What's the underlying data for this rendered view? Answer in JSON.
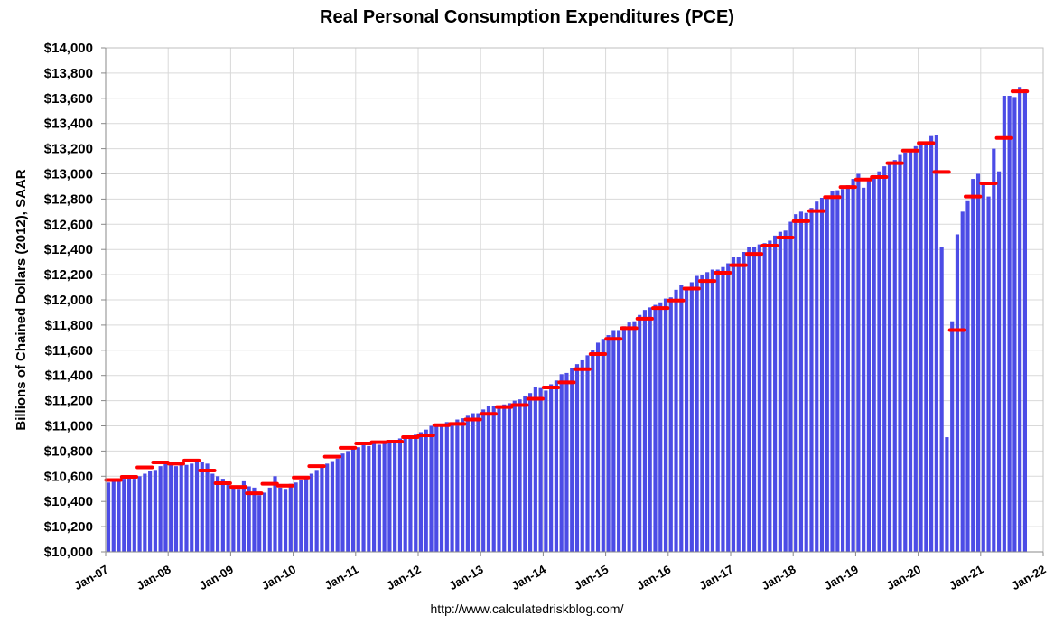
{
  "chart_data": {
    "type": "bar",
    "title": "Real Personal Consumption Expenditures (PCE)",
    "ylabel": "Billions of Chained Dollars (2012), SAAR",
    "xlabel": "",
    "ylim": [
      10000,
      14000
    ],
    "y_ticks": [
      "$10,000",
      "$10,200",
      "$10,400",
      "$10,600",
      "$10,800",
      "$11,000",
      "$11,200",
      "$11,400",
      "$11,600",
      "$11,800",
      "$12,000",
      "$12,200",
      "$12,400",
      "$12,600",
      "$12,800",
      "$13,000",
      "$13,200",
      "$13,400",
      "$13,600",
      "$13,800",
      "$14,000"
    ],
    "x_ticks": [
      "Jan-07",
      "Jan-08",
      "Jan-09",
      "Jan-10",
      "Jan-11",
      "Jan-12",
      "Jan-13",
      "Jan-14",
      "Jan-15",
      "Jan-16",
      "Jan-17",
      "Jan-18",
      "Jan-19",
      "Jan-20",
      "Jan-21",
      "Jan-22"
    ],
    "grid": true,
    "legend": "none",
    "series": [
      {
        "start_month": "Jan-07",
        "frequency": "monthly",
        "color": "#4c4ce6",
        "values": [
          10550,
          10560,
          10565,
          10580,
          10590,
          10580,
          10600,
          10620,
          10640,
          10650,
          10680,
          10700,
          10700,
          10680,
          10710,
          10690,
          10700,
          10720,
          10710,
          10700,
          10620,
          10600,
          10580,
          10540,
          10520,
          10500,
          10560,
          10520,
          10510,
          10450,
          10470,
          10510,
          10600,
          10510,
          10500,
          10540,
          10550,
          10570,
          10590,
          10620,
          10650,
          10670,
          10700,
          10720,
          10740,
          10780,
          10800,
          10820,
          10830,
          10850,
          10840,
          10860,
          10850,
          10880,
          10870,
          10880,
          10900,
          10920,
          10910,
          10930,
          10950,
          10970,
          11000,
          11010,
          11000,
          11030,
          11020,
          11050,
          11060,
          11080,
          11100,
          11100,
          11130,
          11160,
          11160,
          11150,
          11170,
          11180,
          11200,
          11210,
          11240,
          11260,
          11310,
          11300,
          11280,
          11330,
          11360,
          11410,
          11420,
          11460,
          11490,
          11520,
          11560,
          11600,
          11660,
          11690,
          11720,
          11760,
          11760,
          11790,
          11820,
          11830,
          11880,
          11920,
          11940,
          11960,
          11980,
          12010,
          12020,
          12080,
          12120,
          12100,
          12140,
          12190,
          12200,
          12220,
          12240,
          12240,
          12260,
          12290,
          12340,
          12340,
          12380,
          12420,
          12420,
          12440,
          12450,
          12470,
          12510,
          12540,
          12550,
          12620,
          12680,
          12700,
          12690,
          12730,
          12780,
          12810,
          12820,
          12860,
          12870,
          12880,
          12910,
          12960,
          13000,
          12890,
          12950,
          12990,
          13020,
          13060,
          13090,
          13110,
          13150,
          13170,
          13190,
          13220,
          13250,
          13240,
          13300,
          13310,
          12420,
          10910,
          11830,
          12520,
          12700,
          12790,
          12960,
          13000,
          12920,
          12820,
          13200,
          13020,
          13620,
          13620,
          13610,
          13690,
          13670
        ]
      }
    ],
    "annual_averages": {
      "color": "#ff0000",
      "years": [
        "2007",
        "2008",
        "2009",
        "2010",
        "2011",
        "2012",
        "2013",
        "2014",
        "2015",
        "2016",
        "2017",
        "2018",
        "2019",
        "2020",
        "2021"
      ],
      "quarter_values": [
        [
          10570,
          10595,
          10670,
          10710
        ],
        [
          10700,
          10725,
          10645,
          10545
        ],
        [
          10515,
          10465,
          10540,
          10525
        ],
        [
          10590,
          10680,
          10755,
          10825
        ],
        [
          10860,
          10870,
          10875,
          10910
        ],
        [
          10925,
          11005,
          11015,
          11050
        ],
        [
          11095,
          11150,
          11165,
          11215
        ],
        [
          11305,
          11345,
          11450,
          11570
        ],
        [
          11690,
          11775,
          11850,
          11935
        ],
        [
          11995,
          12090,
          12150,
          12215
        ],
        [
          12275,
          12365,
          12430,
          12495
        ],
        [
          12625,
          12705,
          12815,
          12895
        ],
        [
          12955,
          12975,
          13085,
          13185
        ],
        [
          13245,
          13015,
          11760,
          12820
        ],
        [
          12925,
          13285,
          13655
        ]
      ]
    }
  },
  "source": "http://www.calculatedriskblog.com/"
}
